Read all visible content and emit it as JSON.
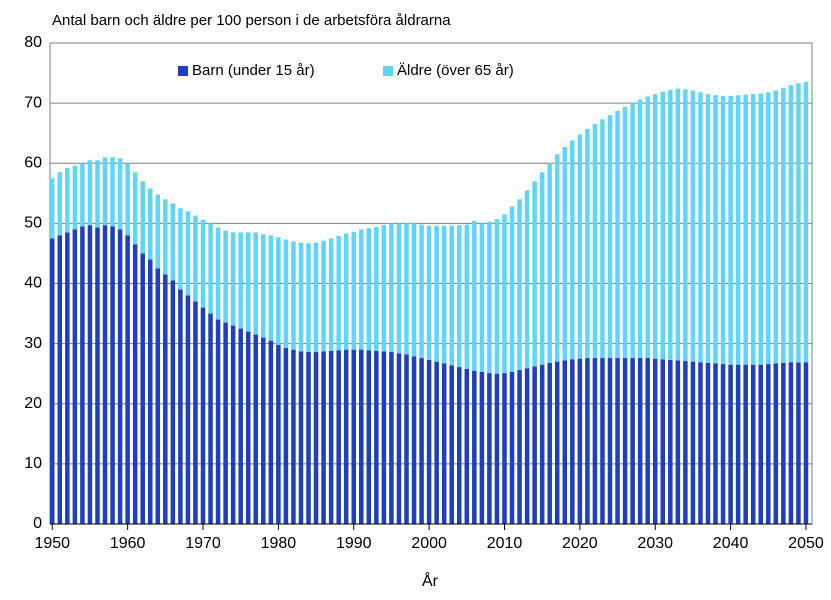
{
  "chart_data": {
    "type": "stacked_bar",
    "title": "Antal barn och äldre per 100 person i de arbetsföra åldrarna",
    "x_label": "År",
    "x": [
      1950,
      1951,
      1952,
      1953,
      1954,
      1955,
      1956,
      1957,
      1958,
      1959,
      1960,
      1961,
      1962,
      1963,
      1964,
      1965,
      1966,
      1967,
      1968,
      1969,
      1970,
      1971,
      1972,
      1973,
      1974,
      1975,
      1976,
      1977,
      1978,
      1979,
      1980,
      1981,
      1982,
      1983,
      1984,
      1985,
      1986,
      1987,
      1988,
      1989,
      1990,
      1991,
      1992,
      1993,
      1994,
      1995,
      1996,
      1997,
      1998,
      1999,
      2000,
      2001,
      2002,
      2003,
      2004,
      2005,
      2006,
      2007,
      2008,
      2009,
      2010,
      2011,
      2012,
      2013,
      2014,
      2015,
      2016,
      2017,
      2018,
      2019,
      2020,
      2021,
      2022,
      2023,
      2024,
      2025,
      2026,
      2027,
      2028,
      2029,
      2030,
      2031,
      2032,
      2033,
      2034,
      2035,
      2036,
      2037,
      2038,
      2039,
      2040,
      2041,
      2042,
      2043,
      2044,
      2045,
      2046,
      2047,
      2048,
      2049,
      2050
    ],
    "series": [
      {
        "name": "Barn (under 15 år)",
        "color": "#1f3fbf",
        "values": [
          47.5,
          48,
          48.5,
          49,
          49.5,
          49.7,
          49.3,
          49.7,
          49.5,
          49,
          48,
          46.5,
          45,
          44,
          42.5,
          41.5,
          40.5,
          39,
          38,
          37,
          36,
          35,
          34,
          33.5,
          33,
          32.5,
          32,
          31.5,
          31,
          30.5,
          29.8,
          29.3,
          29,
          28.7,
          28.6,
          28.6,
          28.7,
          28.8,
          28.9,
          29,
          29,
          29,
          28.9,
          28.8,
          28.7,
          28.6,
          28.4,
          28.2,
          27.9,
          27.6,
          27.3,
          27,
          26.7,
          26.4,
          26.1,
          25.8,
          25.5,
          25.3,
          25.1,
          25,
          25.1,
          25.3,
          25.6,
          25.9,
          26.2,
          26.5,
          26.8,
          27,
          27.2,
          27.4,
          27.5,
          27.6,
          27.6,
          27.6,
          27.6,
          27.6,
          27.6,
          27.6,
          27.6,
          27.6,
          27.5,
          27.4,
          27.3,
          27.2,
          27.1,
          27,
          26.9,
          26.8,
          26.7,
          26.6,
          26.5,
          26.5,
          26.5,
          26.5,
          26.5,
          26.6,
          26.7,
          26.8,
          26.9,
          26.9,
          26.9
        ]
      },
      {
        "name": "Äldre (över 65 år)",
        "color": "#5fd6f6",
        "values": [
          10,
          10.5,
          10.7,
          10.6,
          10.5,
          10.8,
          11.2,
          11.3,
          11.5,
          11.8,
          12,
          12,
          12,
          11.8,
          12.3,
          12.5,
          12.8,
          13.5,
          14,
          14.3,
          14.6,
          15,
          15.3,
          15.3,
          15.5,
          16,
          16.5,
          17,
          17.2,
          17.5,
          17.9,
          18,
          18,
          18.1,
          18.1,
          18.2,
          18.4,
          18.7,
          19,
          19.3,
          19.6,
          20,
          20.3,
          20.6,
          21,
          21.4,
          21.6,
          21.8,
          22.1,
          22.2,
          22.3,
          22.6,
          22.9,
          23.2,
          23.6,
          24,
          24.9,
          24.7,
          25.2,
          25.7,
          26.4,
          27.5,
          28.4,
          29.6,
          30.8,
          32,
          33.2,
          34.5,
          35.5,
          36.4,
          37.3,
          38.1,
          38.9,
          39.7,
          40.4,
          41.1,
          41.8,
          42.4,
          43,
          43.5,
          44,
          44.5,
          44.9,
          45.2,
          45.2,
          45.1,
          44.9,
          44.7,
          44.6,
          44.6,
          44.7,
          44.8,
          44.9,
          45,
          45.1,
          45.2,
          45.4,
          45.7,
          46.1,
          46.4,
          46.6
        ]
      }
    ],
    "xlim": [
      1949.7,
      2050.8
    ],
    "xticks": [
      1950,
      1960,
      1970,
      1980,
      1990,
      2000,
      2010,
      2020,
      2030,
      2040,
      2050
    ],
    "ylim": [
      0,
      80
    ],
    "yticks": [
      0,
      10,
      20,
      30,
      40,
      50,
      60,
      70,
      80
    ],
    "grid": true,
    "legend": "top"
  }
}
